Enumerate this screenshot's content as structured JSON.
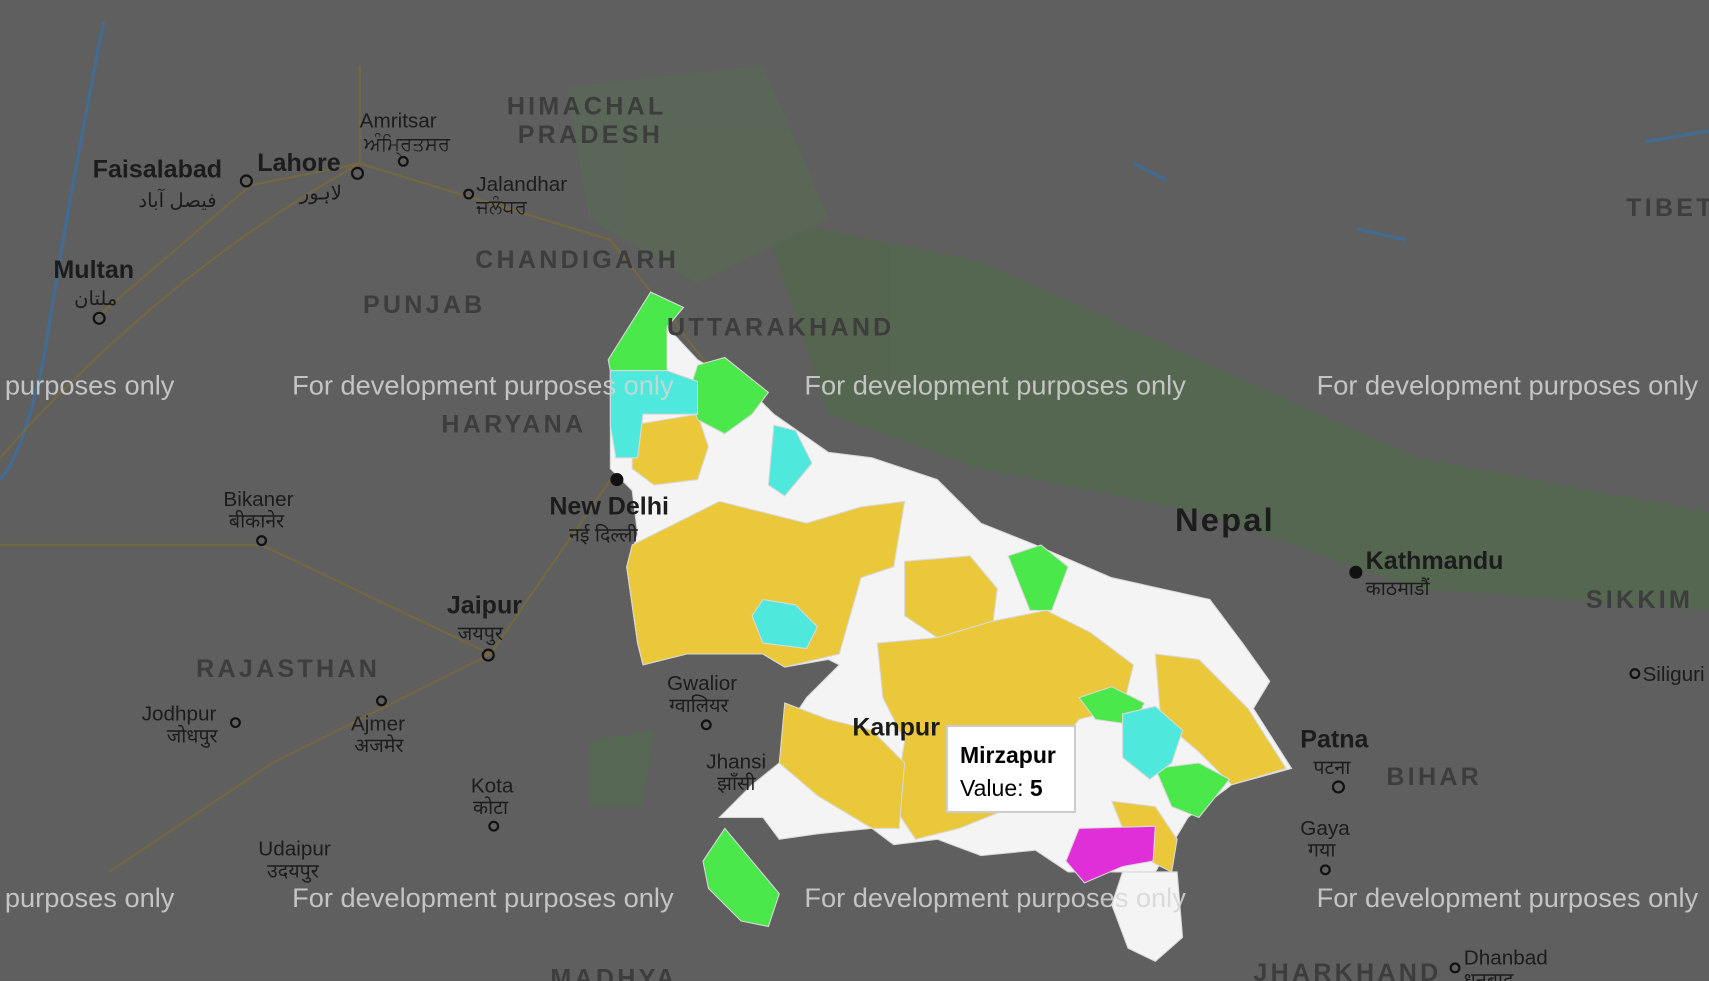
{
  "map": {
    "watermark": "For development purposes only",
    "colors": {
      "background": "#5f5f5f",
      "default_district": "#f4f4f4",
      "yellow": "#ebc83a",
      "green": "#4ae84a",
      "cyan": "#4ee8dc",
      "magenta": "#e02fd9"
    },
    "places": [
      {
        "name": "Amritsar",
        "native": "ਅੰਮ੍ਰਿਤਸਰ"
      },
      {
        "name": "Faisalabad",
        "native": "فیصل آباد"
      },
      {
        "name": "Lahore",
        "native": "لاہور"
      },
      {
        "name": "Jalandhar",
        "native": "ਜਲੰਧਰ"
      },
      {
        "name": "Multan",
        "native": "ملتان"
      },
      {
        "name": "Bikaner",
        "native": "बीकानेर"
      },
      {
        "name": "New Delhi",
        "native": "नई दिल्ली"
      },
      {
        "name": "Jaipur",
        "native": "जयपुर"
      },
      {
        "name": "Jodhpur",
        "native": "जोधपुर"
      },
      {
        "name": "Ajmer",
        "native": "अजमेर"
      },
      {
        "name": "Gwalior",
        "native": "ग्वालियर"
      },
      {
        "name": "Kota",
        "native": "कोटा"
      },
      {
        "name": "Udaipur",
        "native": "उदयपुर"
      },
      {
        "name": "Jhansi",
        "native": "झाँसी"
      },
      {
        "name": "Kathmandu",
        "native": "काठमाडौं"
      },
      {
        "name": "Patna",
        "native": "पटना"
      },
      {
        "name": "Gaya",
        "native": "गया"
      },
      {
        "name": "Dhanbad",
        "native": "धनबाद"
      },
      {
        "name": "Siliguri",
        "native": ""
      },
      {
        "name": "Kanpur",
        "native": ""
      }
    ],
    "regions": [
      "HIMACHAL",
      "PRADESH",
      "CHANDIGARH",
      "PUNJAB",
      "UTTARAKHAND",
      "HARYANA",
      "RAJASTHAN",
      "BIHAR",
      "SIKKIM",
      "TIBET",
      "JHARKHAND",
      "MADHYA"
    ],
    "countries": [
      "Nepal"
    ]
  },
  "tooltip": {
    "district": "Mirzapur",
    "value_label": "Value:",
    "value": "5"
  }
}
